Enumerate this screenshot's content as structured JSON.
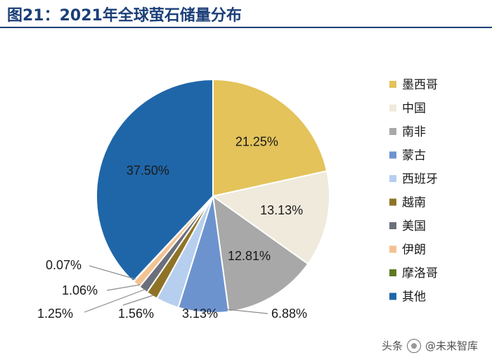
{
  "figure": {
    "title": "图21：2021年全球萤石储量分布"
  },
  "watermark": {
    "prefix": "头条",
    "handle": "@未来智库"
  },
  "chart_data": {
    "type": "pie",
    "title": "图21：2021年全球萤石储量分布",
    "start": "12 o'clock",
    "direction": "clockwise",
    "legend_position": "right",
    "slices": [
      {
        "name": "墨西哥",
        "value": 21.25,
        "label": "21.25%",
        "color": "#e3c35a"
      },
      {
        "name": "中国",
        "value": 13.13,
        "label": "13.13%",
        "color": "#efeadc"
      },
      {
        "name": "南非",
        "value": 12.81,
        "label": "12.81%",
        "color": "#a8a8a8"
      },
      {
        "name": "蒙古",
        "value": 6.88,
        "label": "6.88%",
        "color": "#6d93cf"
      },
      {
        "name": "西班牙",
        "value": 3.13,
        "label": "3.13%",
        "color": "#b6cfee"
      },
      {
        "name": "越南",
        "value": 1.56,
        "label": "1.56%",
        "color": "#8e7327"
      },
      {
        "name": "美国",
        "value": 1.25,
        "label": "1.25%",
        "color": "#6b6f7a"
      },
      {
        "name": "伊朗",
        "value": 1.06,
        "label": "1.06%",
        "color": "#f3c293"
      },
      {
        "name": "摩洛哥",
        "value": 0.07,
        "label": "0.07%",
        "color": "#5e7a22"
      },
      {
        "name": "其他",
        "value": 37.5,
        "label": "37.50%",
        "color": "#1f66a8"
      }
    ]
  }
}
